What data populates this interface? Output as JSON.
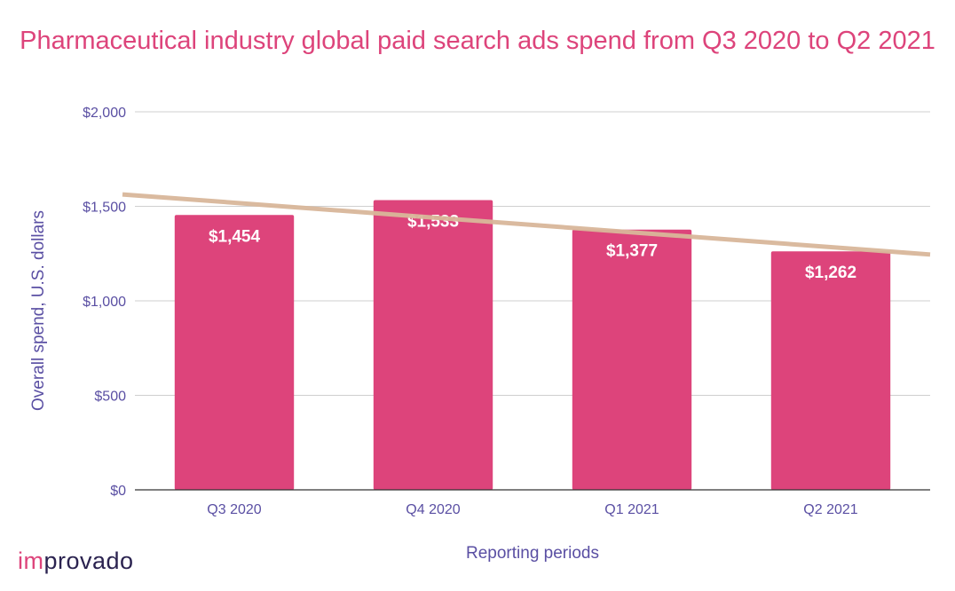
{
  "brand": {
    "logo_part1": "im",
    "logo_part2": "provado"
  },
  "colors": {
    "bar": "#dd447b",
    "trend": "#d9b79a",
    "grid": "#cfcfcf",
    "axis": "#333333",
    "text": "#5a4fa3",
    "title": "#dd447b"
  },
  "chart_data": {
    "type": "bar",
    "title": "Pharmaceutical industry global paid search ads spend from Q3 2020 to Q2 2021",
    "xlabel": "Reporting periods",
    "ylabel": "Overall spend, U.S. dollars",
    "categories": [
      "Q3 2020",
      "Q4 2020",
      "Q1 2021",
      "Q2 2021"
    ],
    "values": [
      1454,
      1533,
      1377,
      1262
    ],
    "data_labels": [
      "$1,454",
      "$1,533",
      "$1,377",
      "$1,262"
    ],
    "ylim": [
      0,
      2000
    ],
    "yticks": [
      0,
      500,
      1000,
      1500,
      2000
    ],
    "ytick_labels": [
      "$0",
      "$500",
      "$1,000",
      "$1,500",
      "$2,000"
    ],
    "trendline": {
      "type": "linear",
      "start_value": 1563,
      "end_value": 1245
    },
    "grid": true,
    "legend": "none"
  }
}
